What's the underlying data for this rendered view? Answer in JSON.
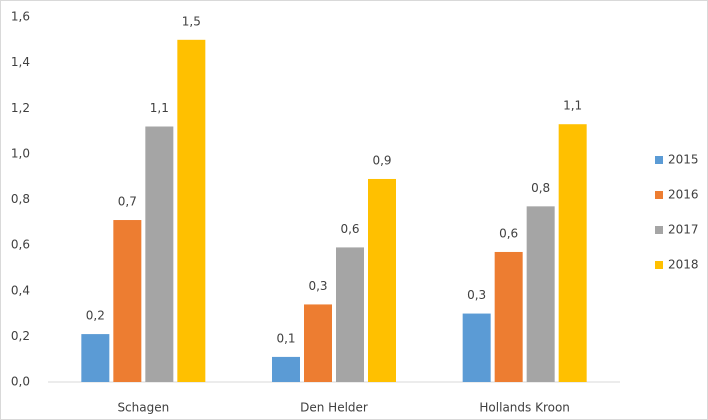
{
  "chart_data": {
    "type": "bar",
    "categories": [
      "Schagen",
      "Den Helder",
      "Hollands Kroon"
    ],
    "series": [
      {
        "name": "2015",
        "color": "#5b9bd5",
        "values": [
          0.21,
          0.11,
          0.3
        ],
        "value_labels": [
          "0,2",
          "0,1",
          "0,3"
        ]
      },
      {
        "name": "2016",
        "color": "#ed7d31",
        "values": [
          0.71,
          0.34,
          0.57
        ],
        "value_labels": [
          "0,7",
          "0,3",
          "0,6"
        ]
      },
      {
        "name": "2017",
        "color": "#a5a5a5",
        "values": [
          1.12,
          0.59,
          0.77
        ],
        "value_labels": [
          "1,1",
          "0,6",
          "0,8"
        ]
      },
      {
        "name": "2018",
        "color": "#ffc000",
        "values": [
          1.5,
          0.89,
          1.13
        ],
        "value_labels": [
          "1,5",
          "0,9",
          "1,1"
        ]
      }
    ],
    "ylim": [
      0,
      1.6
    ],
    "yticks": [
      {
        "value": 0,
        "label": "0,0"
      },
      {
        "value": 0.2,
        "label": "0,2"
      },
      {
        "value": 0.4,
        "label": "0,4"
      },
      {
        "value": 0.6,
        "label": "0,6"
      },
      {
        "value": 0.8,
        "label": "0,8"
      },
      {
        "value": 1.0,
        "label": "1,0"
      },
      {
        "value": 1.2,
        "label": "1,2"
      },
      {
        "value": 1.4,
        "label": "1,4"
      },
      {
        "value": 1.6,
        "label": "1,6"
      }
    ],
    "grid": false,
    "legend": "right"
  }
}
